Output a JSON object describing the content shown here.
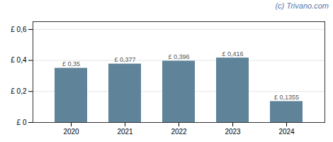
{
  "chart_data": {
    "type": "bar",
    "categories": [
      "2020",
      "2021",
      "2022",
      "2023",
      "2024"
    ],
    "values": [
      0.35,
      0.377,
      0.396,
      0.416,
      0.1355
    ],
    "value_labels": [
      "£ 0,35",
      "£ 0,377",
      "£ 0,396",
      "£ 0,416",
      "£ 0,1355"
    ],
    "data_labels": true,
    "color": "#5f8499",
    "ylim": [
      0,
      0.65
    ],
    "yticks": [
      {
        "value": 0,
        "label": "£ 0"
      },
      {
        "value": 0.2,
        "label": "£ 0,2"
      },
      {
        "value": 0.4,
        "label": "£ 0,4"
      },
      {
        "value": 0.6,
        "label": "£ 0,6"
      }
    ],
    "grid": true,
    "annotations": [
      "(c) Trivano.com"
    ]
  }
}
